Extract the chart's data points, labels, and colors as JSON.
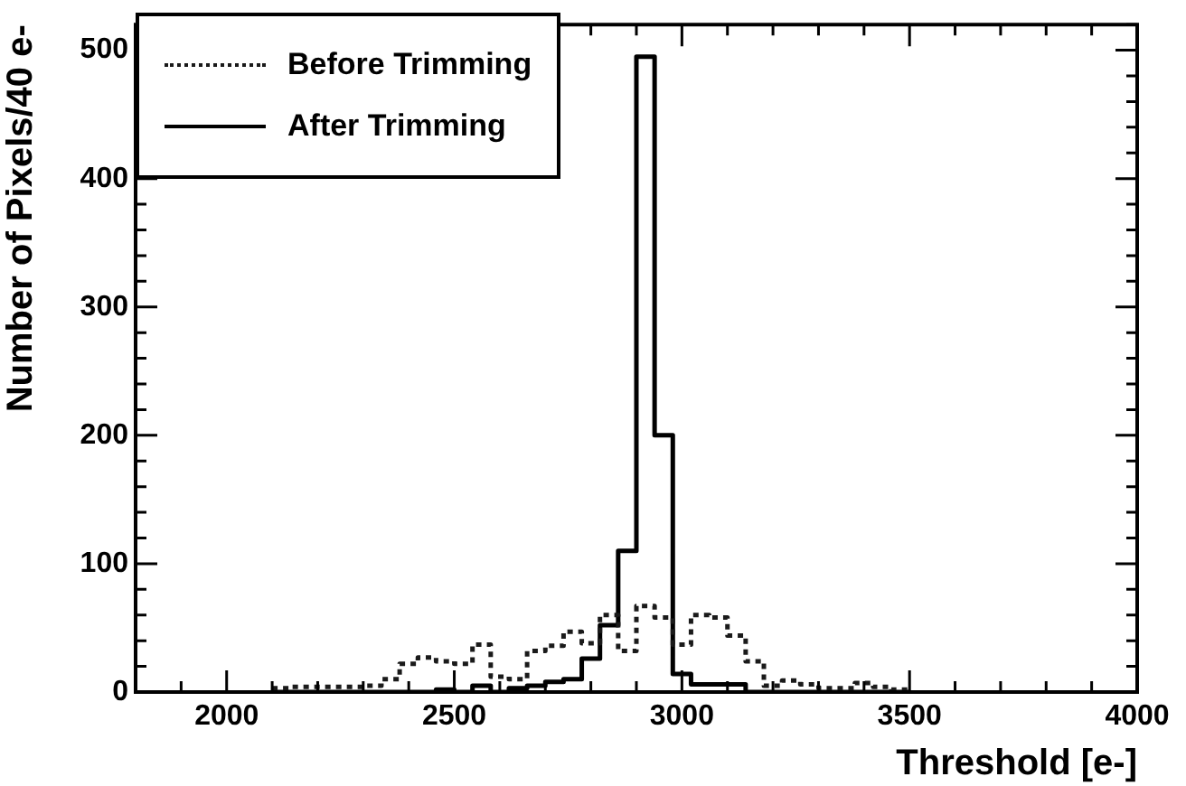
{
  "chart_data": {
    "type": "histogram",
    "xlabel": "Threshold [e-]",
    "ylabel": "Number of Pixels/40 e-",
    "bins": [
      2100,
      2140,
      2180,
      2220,
      2260,
      2300,
      2340,
      2380,
      2420,
      2460,
      2500,
      2540,
      2580,
      2620,
      2660,
      2700,
      2740,
      2780,
      2820,
      2860,
      2900,
      2940,
      2980,
      3020,
      3060,
      3100,
      3140,
      3180,
      3220,
      3260,
      3300,
      3340,
      3380,
      3420,
      3460,
      3500
    ],
    "series": [
      {
        "name": "Before Trimming",
        "color": "#1a1a1a",
        "line_style": "dotted",
        "values": [
          3,
          4,
          4,
          4,
          4,
          5,
          10,
          22,
          27,
          24,
          22,
          37,
          12,
          10,
          32,
          36,
          47,
          38,
          60,
          32,
          67,
          58,
          37,
          60,
          58,
          44,
          24,
          5,
          9,
          6,
          3,
          3,
          7,
          4,
          2
        ]
      },
      {
        "name": "After Trimming",
        "color": "#000000",
        "line_style": "solid",
        "values": [
          0,
          0,
          0,
          0,
          0,
          0,
          0,
          0,
          0,
          2,
          0,
          5,
          0,
          3,
          5,
          8,
          10,
          26,
          52,
          110,
          495,
          200,
          14,
          6,
          6,
          6,
          0,
          0,
          0,
          0,
          0,
          0,
          0,
          0,
          0
        ]
      }
    ],
    "xlim": [
      1800,
      4000
    ],
    "xticks": [
      2000,
      2500,
      3000,
      3500,
      4000
    ],
    "ylim": [
      0,
      520
    ],
    "yticks": [
      0,
      100,
      200,
      300,
      400,
      500
    ],
    "legend": "top left",
    "grid": false
  }
}
